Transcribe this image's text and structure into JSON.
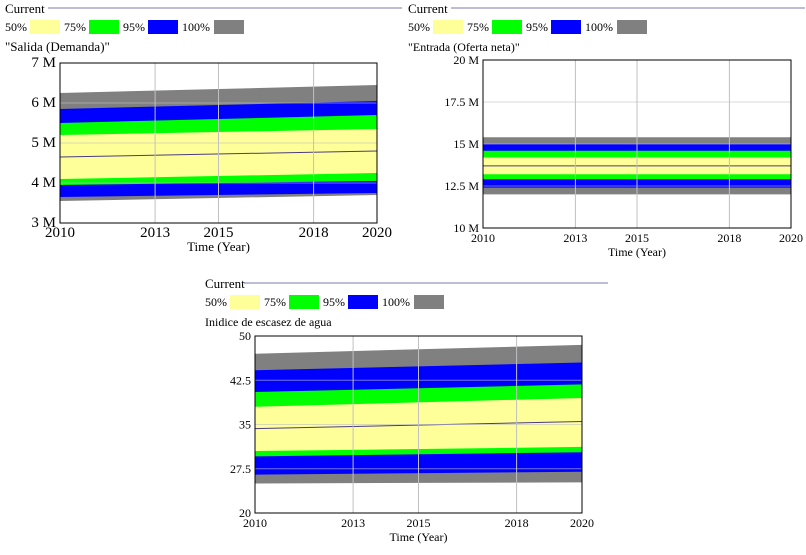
{
  "colors": {
    "p50": "#ffff99",
    "p75": "#00ff00",
    "p95": "#0000ff",
    "p100": "#808080",
    "median_line": "#4b3c80",
    "grid": "#c0c0c0"
  },
  "legend": {
    "current_label": "Current",
    "entries": [
      {
        "label": "50%",
        "color_key": "p50"
      },
      {
        "label": "75%",
        "color_key": "p75"
      },
      {
        "label": "95%",
        "color_key": "p95"
      },
      {
        "label": "100%",
        "color_key": "p100"
      }
    ]
  },
  "chart_data": [
    {
      "type": "area",
      "title": "\"Salida (Demanda)\"",
      "xlabel": "Time (Year)",
      "ylabel": "",
      "x": [
        2010,
        2020
      ],
      "xticks": [
        2010,
        2013,
        2015,
        2018,
        2020
      ],
      "xtick_labels": [
        "2010",
        "2013",
        "2015",
        "2018",
        "2020"
      ],
      "ylim": [
        3,
        7
      ],
      "yticks": [
        3,
        4,
        5,
        6,
        7
      ],
      "ytick_labels": [
        "3 M",
        "4 M",
        "5 M",
        "6 M",
        "7 M"
      ],
      "grid": true,
      "bands": [
        {
          "name": "100%",
          "lower": [
            3.55,
            3.7
          ],
          "upper": [
            6.25,
            6.45
          ]
        },
        {
          "name": "95%",
          "lower": [
            3.65,
            3.75
          ],
          "upper": [
            5.85,
            6.05
          ]
        },
        {
          "name": "75%",
          "lower": [
            3.95,
            4.05
          ],
          "upper": [
            5.5,
            5.7
          ]
        },
        {
          "name": "50%",
          "lower": [
            4.1,
            4.25
          ],
          "upper": [
            5.2,
            5.35
          ]
        }
      ],
      "median": [
        4.65,
        4.8
      ]
    },
    {
      "type": "area",
      "title": "\"Entrada (Oferta neta)\"",
      "xlabel": "Time (Year)",
      "ylabel": "",
      "x": [
        2010,
        2020
      ],
      "xticks": [
        2010,
        2013,
        2015,
        2018,
        2020
      ],
      "xtick_labels": [
        "2010",
        "2013",
        "2015",
        "2018",
        "2020"
      ],
      "ylim": [
        10,
        20
      ],
      "yticks": [
        10,
        12.5,
        15,
        17.5,
        20
      ],
      "ytick_labels": [
        "10 M",
        "12.5 M",
        "15 M",
        "17.5 M",
        "20 M"
      ],
      "grid": true,
      "bands": [
        {
          "name": "100%",
          "lower": [
            12.0,
            12.0
          ],
          "upper": [
            15.4,
            15.4
          ]
        },
        {
          "name": "95%",
          "lower": [
            12.4,
            12.4
          ],
          "upper": [
            15.0,
            15.0
          ]
        },
        {
          "name": "75%",
          "lower": [
            12.9,
            12.9
          ],
          "upper": [
            14.6,
            14.6
          ]
        },
        {
          "name": "50%",
          "lower": [
            13.2,
            13.2
          ],
          "upper": [
            14.2,
            14.2
          ]
        }
      ],
      "median": [
        13.7,
        13.7
      ]
    },
    {
      "type": "area",
      "title": "Inidice de escasez de agua",
      "xlabel": "Time (Year)",
      "ylabel": "",
      "x": [
        2010,
        2020
      ],
      "xticks": [
        2010,
        2013,
        2015,
        2018,
        2020
      ],
      "xtick_labels": [
        "2010",
        "2013",
        "2015",
        "2018",
        "2020"
      ],
      "ylim": [
        20,
        50
      ],
      "yticks": [
        20,
        27.5,
        35,
        42.5,
        50
      ],
      "ytick_labels": [
        "20",
        "27.5",
        "35",
        "42.5",
        "50"
      ],
      "grid": true,
      "bands": [
        {
          "name": "100%",
          "lower": [
            25.0,
            25.2
          ],
          "upper": [
            47.0,
            48.5
          ]
        },
        {
          "name": "95%",
          "lower": [
            26.5,
            27.0
          ],
          "upper": [
            44.2,
            45.5
          ]
        },
        {
          "name": "75%",
          "lower": [
            29.6,
            30.3
          ],
          "upper": [
            40.5,
            41.8
          ]
        },
        {
          "name": "50%",
          "lower": [
            30.5,
            31.2
          ],
          "upper": [
            38.0,
            39.5
          ]
        }
      ],
      "median": [
        34.3,
        35.5
      ]
    }
  ]
}
